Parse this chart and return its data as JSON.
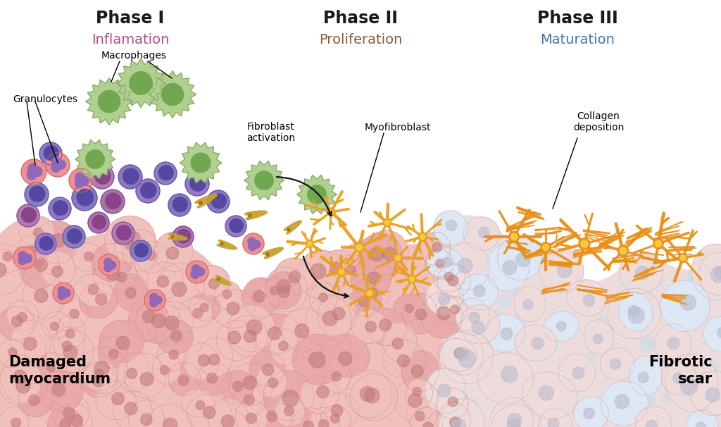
{
  "phase1_label": "Phase I",
  "phase1_sublabel": "Inflamation",
  "phase2_label": "Phase II",
  "phase2_sublabel": "Proliferation",
  "phase3_label": "Phase III",
  "phase3_sublabel": "Maturation",
  "phase1_color": "#b5488a",
  "phase2_color": "#8B5A3C",
  "phase3_color": "#4472b8",
  "phase_label_color": "#1a1a1a",
  "bg_color": "#ffffff",
  "damaged_label": "Damaged\nmyocardium",
  "fibrotic_label": "Fibrotic\nscar",
  "tissue_pink": "#f0c0bc",
  "tissue_pink_border": "#d89490",
  "tissue_pink_dot": "#c07878",
  "tissue_right": "#ecdcdc",
  "tissue_right_border": "#c8b0b0",
  "tissue_right_dot": "#b8b8cc",
  "connective_color": "#ccdde8",
  "cell_purple_a": "#8878c0",
  "cell_purple_b": "#b878b0",
  "cell_pink_gran": "#f09090",
  "cell_green_macro": "#b0d090",
  "cell_green_macro_inner": "#70a850",
  "macro_border": "#80a060",
  "gran_nuc": "#9068b8",
  "fibro_color": "#c8a030",
  "myo_color": "#e8a020",
  "myo_center": "#f5c840",
  "collagen_color": "#e89018",
  "arrow_color": "#111111"
}
